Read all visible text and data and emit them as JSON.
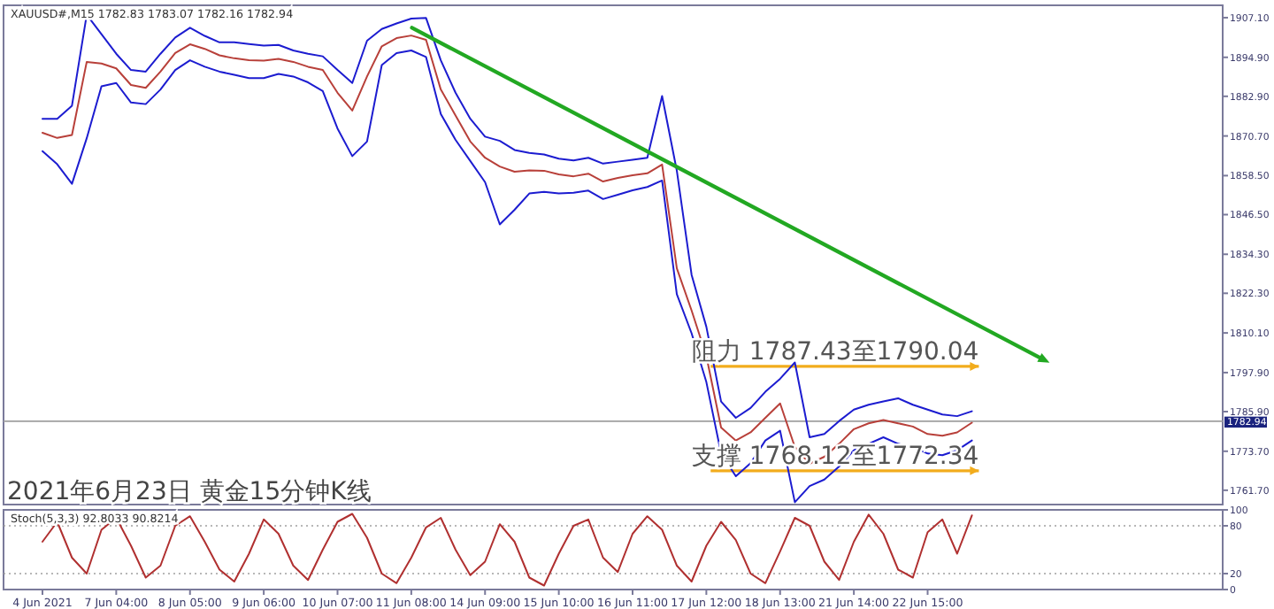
{
  "chart_data": [
    {
      "type": "line",
      "title": "2021年6月23日 黄金15分钟K线",
      "subtitle": "XAUUSD#,M15  1782.83 1783.07 1782.16 1782.94",
      "ylim": [
        1757.3,
        1910.9
      ],
      "yticks": [
        {
          "value": 1907.1,
          "label": "1907.10"
        },
        {
          "value": 1894.9,
          "label": "1894.90"
        },
        {
          "value": 1882.9,
          "label": "1882.90"
        },
        {
          "value": 1870.7,
          "label": "1870.70"
        },
        {
          "value": 1858.5,
          "label": "1858.50"
        },
        {
          "value": 1846.5,
          "label": "1846.50"
        },
        {
          "value": 1834.3,
          "label": "1834.30"
        },
        {
          "value": 1822.3,
          "label": "1822.30"
        },
        {
          "value": 1810.1,
          "label": "1810.10"
        },
        {
          "value": 1797.9,
          "label": "1797.90"
        },
        {
          "value": 1785.9,
          "label": "1785.90"
        },
        {
          "value": 1773.7,
          "label": "1773.70"
        },
        {
          "value": 1761.7,
          "label": "1761.70"
        }
      ],
      "tick_labels": "y",
      "categories": [
        null,
        null,
        null,
        null,
        null,
        null,
        null,
        null,
        null,
        null,
        null,
        null,
        null,
        null,
        null,
        null,
        null,
        null,
        null,
        null,
        null,
        null,
        null,
        null,
        null,
        null,
        null,
        null,
        null,
        null,
        null,
        null,
        null,
        null,
        null,
        null,
        null,
        null,
        null,
        null,
        null,
        null,
        null,
        null,
        null,
        null,
        null,
        null,
        null,
        null,
        null,
        null,
        null,
        null,
        null,
        null,
        null,
        null,
        null,
        null,
        null,
        null,
        null,
        null,
        null,
        null,
        null,
        null,
        null,
        null,
        null,
        null,
        null,
        null,
        null,
        null,
        null,
        null,
        null,
        null
      ],
      "series": [
        {
          "color": "#1c1cd0",
          "values": [
            1876,
            1876,
            1880,
            1908,
            1902,
            1896,
            1891,
            1890.5,
            1896,
            1901,
            1904,
            1901.5,
            1899.5,
            1899.5,
            1899,
            1898.5,
            1898.7,
            1897,
            1896,
            1895.2,
            1891,
            1887,
            1900,
            1903.6,
            1905.3,
            1906.8,
            1907,
            1894,
            1884,
            1876,
            1870.5,
            1869.2,
            1866.4,
            1865.5,
            1865,
            1863.7,
            1863.2,
            1864,
            1862.2,
            1862.8,
            1863.4,
            1864,
            1883,
            1860,
            1828,
            1812,
            1789,
            1784,
            1787,
            1792,
            1796,
            1801,
            1778,
            1779,
            1783,
            1786.5,
            1788,
            1789,
            1790,
            1788,
            1786.5,
            1785,
            1784.5,
            1786,
            null,
            null,
            null,
            null,
            null,
            null,
            null,
            null,
            null,
            null,
            null,
            null,
            null,
            null,
            null,
            null
          ]
        },
        {
          "color": "#1c1cd0",
          "values": [
            1866,
            1862,
            1856,
            1870,
            1886,
            1887,
            1881,
            1880.5,
            1885,
            1891,
            1894,
            1892,
            1890.5,
            1889.5,
            1888.5,
            1888.5,
            1889.8,
            1889,
            1887.2,
            1884.5,
            1873,
            1864.5,
            1869,
            1892.5,
            1896.2,
            1897,
            1895,
            1877.5,
            1869.5,
            1863,
            1856.5,
            1843.5,
            1848,
            1853,
            1853.5,
            1853,
            1853.2,
            1853.9,
            1851.3,
            1852.6,
            1854,
            1855,
            1857,
            1822,
            1810,
            1795,
            1773,
            1766,
            1770,
            1777,
            1780,
            1758,
            1763,
            1765,
            1769,
            1774,
            1776,
            1778,
            1776,
            1775,
            1773,
            1772.5,
            1774,
            1777,
            null,
            null,
            null,
            null,
            null,
            null,
            null,
            null,
            null,
            null,
            null,
            null,
            null,
            null,
            null,
            null
          ]
        },
        {
          "color": "#b8403a",
          "values": [
            1871.7,
            1870.1,
            1871,
            1893.5,
            1893,
            1891.5,
            1886.4,
            1885.5,
            1890.5,
            1896.2,
            1898.9,
            1897.5,
            1895.5,
            1894.6,
            1894,
            1893.9,
            1894.4,
            1893.5,
            1892,
            1891,
            1884,
            1878.5,
            1889,
            1898.3,
            1900.8,
            1901.6,
            1900.3,
            1885,
            1877,
            1869,
            1864,
            1861.3,
            1859.7,
            1860.1,
            1860,
            1858.9,
            1858.3,
            1859.1,
            1856.7,
            1857.8,
            1858.6,
            1859.2,
            1861.9,
            1830,
            1817,
            1803,
            1781,
            1777,
            1779.5,
            1784,
            1788.4,
            1775,
            1769.9,
            1772,
            1776,
            1780.5,
            1782.3,
            1783.3,
            1782.3,
            1781.3,
            1779,
            1778.5,
            1779.5,
            1782.5,
            null,
            null,
            null,
            null,
            null,
            null,
            null,
            null,
            null,
            null,
            null,
            null,
            null,
            null,
            null,
            null
          ]
        }
      ],
      "ref_lines": [
        {
          "axis": "y",
          "value": 1782.94,
          "label": "1782.94",
          "color": "#a0a0a0"
        },
        {
          "axis": "y",
          "value": 1799.8,
          "color": "#f2ac1c"
        },
        {
          "axis": "y",
          "value": 1767.7,
          "color": "#f2ac1c"
        }
      ],
      "annotations": [
        "阻力 1787.43至1790.04",
        "支撑 1768.12至1772.34"
      ]
    },
    {
      "type": "line",
      "subtitle": "Stoch(5,3,3) 92.8033 90.8214",
      "ylim": [
        0,
        100
      ],
      "yticks": [
        0,
        20,
        80,
        100
      ],
      "categories": [
        "4 Jun 2021",
        null,
        null,
        null,
        null,
        "7 Jun 04:00",
        null,
        null,
        null,
        null,
        "8 Jun 05:00",
        null,
        null,
        null,
        null,
        "9 Jun 06:00",
        null,
        null,
        null,
        null,
        "10 Jun 07:00",
        null,
        null,
        null,
        null,
        "11 Jun 08:00",
        null,
        null,
        null,
        null,
        "14 Jun 09:00",
        null,
        null,
        null,
        null,
        "15 Jun 10:00",
        null,
        null,
        null,
        null,
        "16 Jun 11:00",
        null,
        null,
        null,
        null,
        "17 Jun 12:00",
        null,
        null,
        null,
        null,
        "18 Jun 13:00",
        null,
        null,
        null,
        null,
        "21 Jun 14:00",
        null,
        null,
        null,
        null,
        "22 Jun 15:00",
        null,
        null,
        null,
        null,
        null,
        null,
        null,
        null,
        null,
        null,
        null,
        null,
        null,
        null,
        null,
        null,
        null,
        null,
        null
      ],
      "series": [
        {
          "color": "#b03030",
          "values": [
            60,
            85,
            40,
            20,
            75,
            90,
            55,
            15,
            30,
            80,
            92,
            60,
            25,
            10,
            45,
            88,
            70,
            30,
            12,
            50,
            85,
            95,
            65,
            20,
            8,
            40,
            78,
            90,
            50,
            18,
            35,
            82,
            60,
            15,
            5,
            45,
            80,
            88,
            40,
            22,
            70,
            92,
            75,
            30,
            10,
            55,
            85,
            62,
            20,
            8,
            48,
            90,
            80,
            35,
            12,
            60,
            94,
            70,
            25,
            15,
            72,
            88,
            45,
            93,
            null,
            null,
            null,
            null,
            null,
            null,
            null,
            null,
            null,
            null,
            null,
            null,
            null,
            null,
            null,
            null
          ]
        }
      ],
      "ref_lines": [
        {
          "axis": "y",
          "value": 80,
          "color": "#a0a0a0",
          "line_style": "dotted"
        },
        {
          "axis": "y",
          "value": 20,
          "color": "#a0a0a0",
          "line_style": "dotted"
        }
      ]
    }
  ]
}
